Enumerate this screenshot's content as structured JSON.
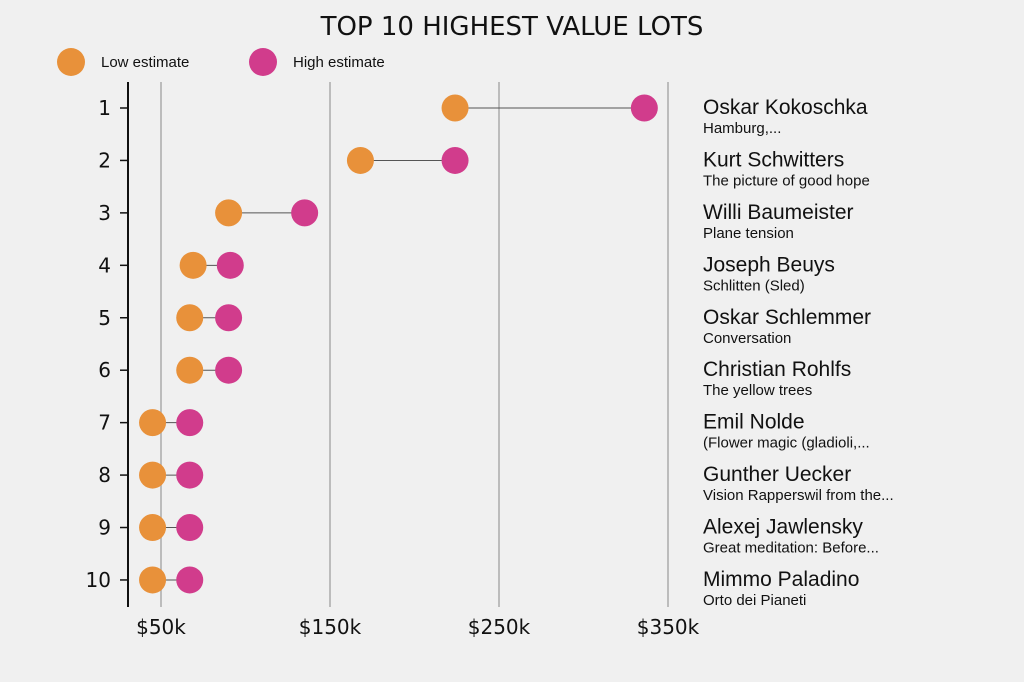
{
  "chart_data": {
    "type": "dumbbell",
    "title": "TOP 10 HIGHEST VALUE LOTS",
    "legend": [
      {
        "label": "Low estimate",
        "color": "#E8913A"
      },
      {
        "label": "High estimate",
        "color": "#D13C8C"
      }
    ],
    "legend_position": "top-left",
    "x_ticks": [
      {
        "value": 50,
        "label": "$50k"
      },
      {
        "value": 150,
        "label": "$150k"
      },
      {
        "value": 250,
        "label": "$250k"
      },
      {
        "value": 350,
        "label": "$350k"
      }
    ],
    "xlim": [
      30,
      350
    ],
    "unit": "thousand USD",
    "grid": true,
    "rows": [
      {
        "rank": "1",
        "artist": "Oskar Kokoschka",
        "work": "Hamburg,...",
        "low": 224,
        "high": 336
      },
      {
        "rank": "2",
        "artist": "Kurt Schwitters",
        "work": "The picture of good hope",
        "low": 168,
        "high": 224
      },
      {
        "rank": "3",
        "artist": "Willi Baumeister",
        "work": "Plane tension",
        "low": 90,
        "high": 135
      },
      {
        "rank": "4",
        "artist": "Joseph Beuys",
        "work": "Schlitten (Sled)",
        "low": 69,
        "high": 91
      },
      {
        "rank": "5",
        "artist": "Oskar Schlemmer",
        "work": "Conversation",
        "low": 67,
        "high": 90
      },
      {
        "rank": "6",
        "artist": "Christian Rohlfs",
        "work": "The yellow trees",
        "low": 67,
        "high": 90
      },
      {
        "rank": "7",
        "artist": "Emil Nolde",
        "work": "(Flower magic (gladioli,...",
        "low": 45,
        "high": 67
      },
      {
        "rank": "8",
        "artist": "Gunther Uecker",
        "work": "Vision Rapperswil from the...",
        "low": 45,
        "high": 67
      },
      {
        "rank": "9",
        "artist": "Alexej Jawlensky",
        "work": "Great meditation: Before...",
        "low": 45,
        "high": 67
      },
      {
        "rank": "10",
        "artist": "Mimmo Paladino",
        "work": "Orto dei Pianeti",
        "low": 45,
        "high": 67
      }
    ]
  }
}
